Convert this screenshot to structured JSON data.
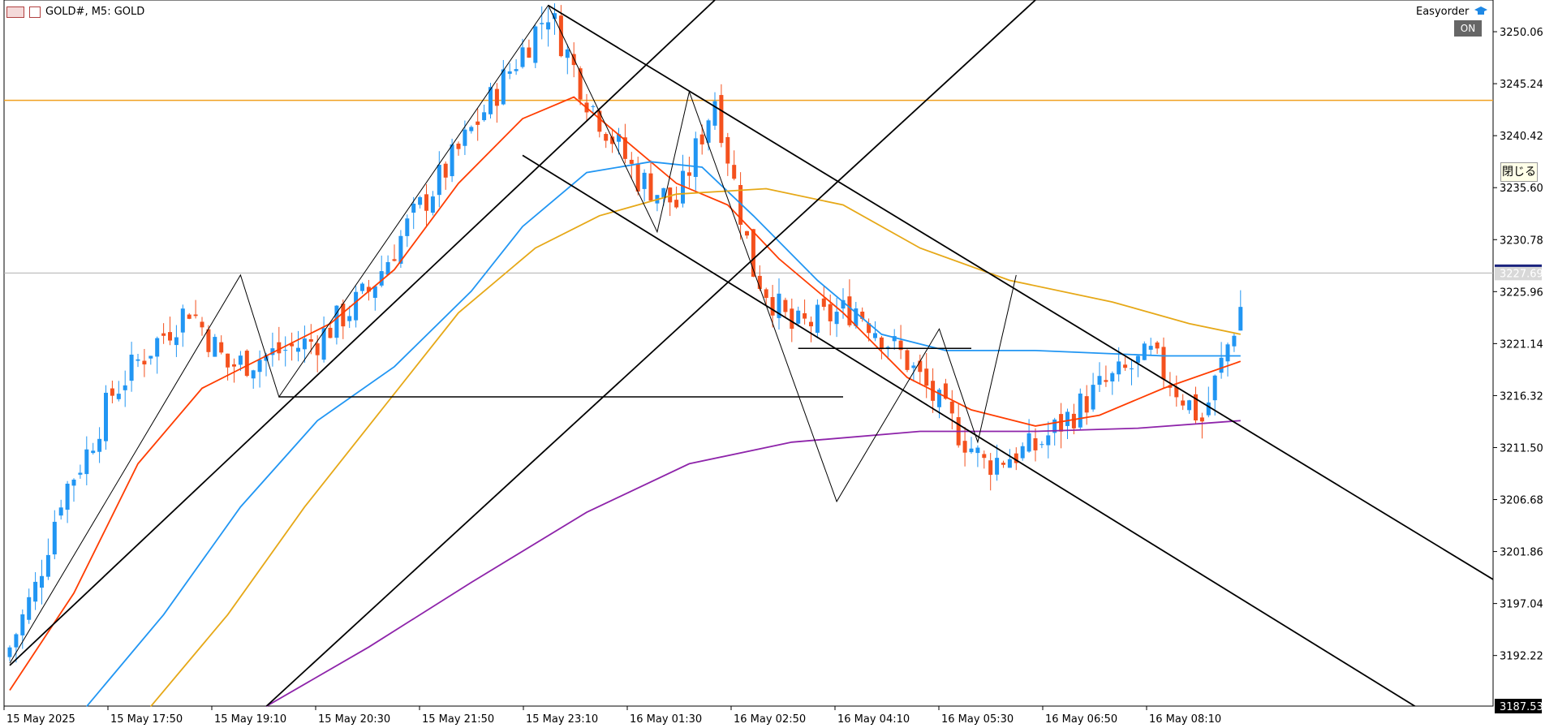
{
  "header": {
    "symbol_label": "GOLD#, M5:  GOLD",
    "easyorder_label": "Easyorder",
    "on_label": "ON",
    "close_label": "閉じる"
  },
  "colors": {
    "bull": "#2196f3",
    "bear": "#f4511e",
    "ma_fast": "#ff3d00",
    "ma_mid": "#2196f3",
    "ma_slow": "#e6a817",
    "ma_long": "#8e24aa",
    "resistance": "#f0a020",
    "lines": "#000000"
  },
  "chart_data": {
    "type": "candlestick",
    "symbol": "GOLD#",
    "timeframe": "M5",
    "ylim": [
      3187.53,
      3253.0
    ],
    "y_ticks": [
      3250.06,
      3245.24,
      3240.42,
      3235.6,
      3230.78,
      3225.96,
      3221.14,
      3216.32,
      3211.5,
      3206.68,
      3201.86,
      3197.04,
      3192.22
    ],
    "bottom_price_label": "3187.53",
    "current_price": 3227.69,
    "current_price_label": "3227.69",
    "resistance_level": 3243.7,
    "x_ticks": [
      "15 May 2025",
      "15 May 17:50",
      "15 May 19:10",
      "15 May 20:30",
      "15 May 21:50",
      "15 May 23:10",
      "16 May 01:30",
      "16 May 02:50",
      "16 May 04:10",
      "16 May 05:30",
      "16 May 06:50",
      "16 May 08:10"
    ],
    "close_path": [
      [
        0,
        3193.0
      ],
      [
        4,
        3198.5
      ],
      [
        8,
        3207.0
      ],
      [
        12,
        3211.0
      ],
      [
        16,
        3216.5
      ],
      [
        20,
        3219.5
      ],
      [
        24,
        3222.0
      ],
      [
        28,
        3224.5
      ],
      [
        34,
        3219.0
      ],
      [
        40,
        3220.0
      ],
      [
        48,
        3221.5
      ],
      [
        56,
        3226.0
      ],
      [
        62,
        3232.0
      ],
      [
        70,
        3239.0
      ],
      [
        78,
        3246.5
      ],
      [
        84,
        3252.0
      ],
      [
        90,
        3244.0
      ],
      [
        98,
        3236.5
      ],
      [
        104,
        3234.0
      ],
      [
        110,
        3244.0
      ],
      [
        116,
        3228.0
      ],
      [
        122,
        3222.5
      ],
      [
        132,
        3224.5
      ],
      [
        140,
        3219.5
      ],
      [
        146,
        3214.5
      ],
      [
        152,
        3210.0
      ],
      [
        160,
        3211.5
      ],
      [
        170,
        3217.0
      ],
      [
        178,
        3220.0
      ],
      [
        186,
        3214.0
      ],
      [
        192,
        3224.5
      ]
    ],
    "moving_averages": [
      {
        "color_key": "ma_fast",
        "points": [
          [
            0,
            3189
          ],
          [
            10,
            3198
          ],
          [
            20,
            3210
          ],
          [
            30,
            3217
          ],
          [
            40,
            3220
          ],
          [
            50,
            3223
          ],
          [
            60,
            3228
          ],
          [
            70,
            3236
          ],
          [
            80,
            3242
          ],
          [
            88,
            3244
          ],
          [
            96,
            3240
          ],
          [
            104,
            3236
          ],
          [
            112,
            3234
          ],
          [
            120,
            3229
          ],
          [
            130,
            3224
          ],
          [
            140,
            3218
          ],
          [
            150,
            3215
          ],
          [
            160,
            3213.5
          ],
          [
            170,
            3214.5
          ],
          [
            180,
            3217
          ],
          [
            192,
            3219.5
          ]
        ]
      },
      {
        "color_key": "ma_mid",
        "points": [
          [
            12,
            3187.5
          ],
          [
            24,
            3196
          ],
          [
            36,
            3206
          ],
          [
            48,
            3214
          ],
          [
            60,
            3219
          ],
          [
            72,
            3226
          ],
          [
            80,
            3232
          ],
          [
            90,
            3237
          ],
          [
            100,
            3238
          ],
          [
            108,
            3237.5
          ],
          [
            116,
            3233
          ],
          [
            126,
            3227
          ],
          [
            136,
            3222
          ],
          [
            146,
            3220.5
          ],
          [
            160,
            3220.5
          ],
          [
            180,
            3220
          ],
          [
            192,
            3220
          ]
        ]
      },
      {
        "color_key": "ma_slow",
        "points": [
          [
            22,
            3187.5
          ],
          [
            34,
            3196
          ],
          [
            46,
            3206
          ],
          [
            58,
            3215
          ],
          [
            70,
            3224
          ],
          [
            82,
            3230
          ],
          [
            92,
            3233
          ],
          [
            104,
            3235
          ],
          [
            118,
            3235.5
          ],
          [
            130,
            3234
          ],
          [
            142,
            3230
          ],
          [
            156,
            3227
          ],
          [
            172,
            3225
          ],
          [
            184,
            3223
          ],
          [
            192,
            3222
          ]
        ]
      },
      {
        "color_key": "ma_long",
        "points": [
          [
            40,
            3187.5
          ],
          [
            56,
            3193
          ],
          [
            72,
            3199
          ],
          [
            90,
            3205.5
          ],
          [
            106,
            3210
          ],
          [
            122,
            3212
          ],
          [
            142,
            3213
          ],
          [
            160,
            3213
          ],
          [
            176,
            3213.3
          ],
          [
            192,
            3214
          ]
        ]
      }
    ],
    "zigzag": [
      [
        0,
        3191.5
      ],
      [
        36,
        3227.5
      ],
      [
        42,
        3216.2
      ],
      [
        84,
        3252.5
      ],
      [
        101,
        3231.5
      ],
      [
        106,
        3244.5
      ],
      [
        129,
        3206.5
      ],
      [
        145,
        3222.5
      ],
      [
        151,
        3212.0
      ],
      [
        157,
        3227.5
      ]
    ],
    "trend_lines": [
      {
        "p1": [
          0,
          3191.3
        ],
        "p2": [
          110,
          3253.0
        ]
      },
      {
        "p1": [
          40,
          3187.5
        ],
        "p2": [
          160,
          3253.0
        ]
      },
      {
        "p1": [
          84,
          3252.5
        ],
        "p2": [
          192,
          3213.5
        ]
      },
      {
        "p1": [
          80,
          3238.6
        ],
        "p2": [
          192,
          3197.5
        ]
      }
    ],
    "horizontal_segments": [
      {
        "y": 3216.2,
        "x1": 42,
        "x2": 130
      },
      {
        "y": 3220.7,
        "x1": 123,
        "x2": 150
      }
    ]
  }
}
